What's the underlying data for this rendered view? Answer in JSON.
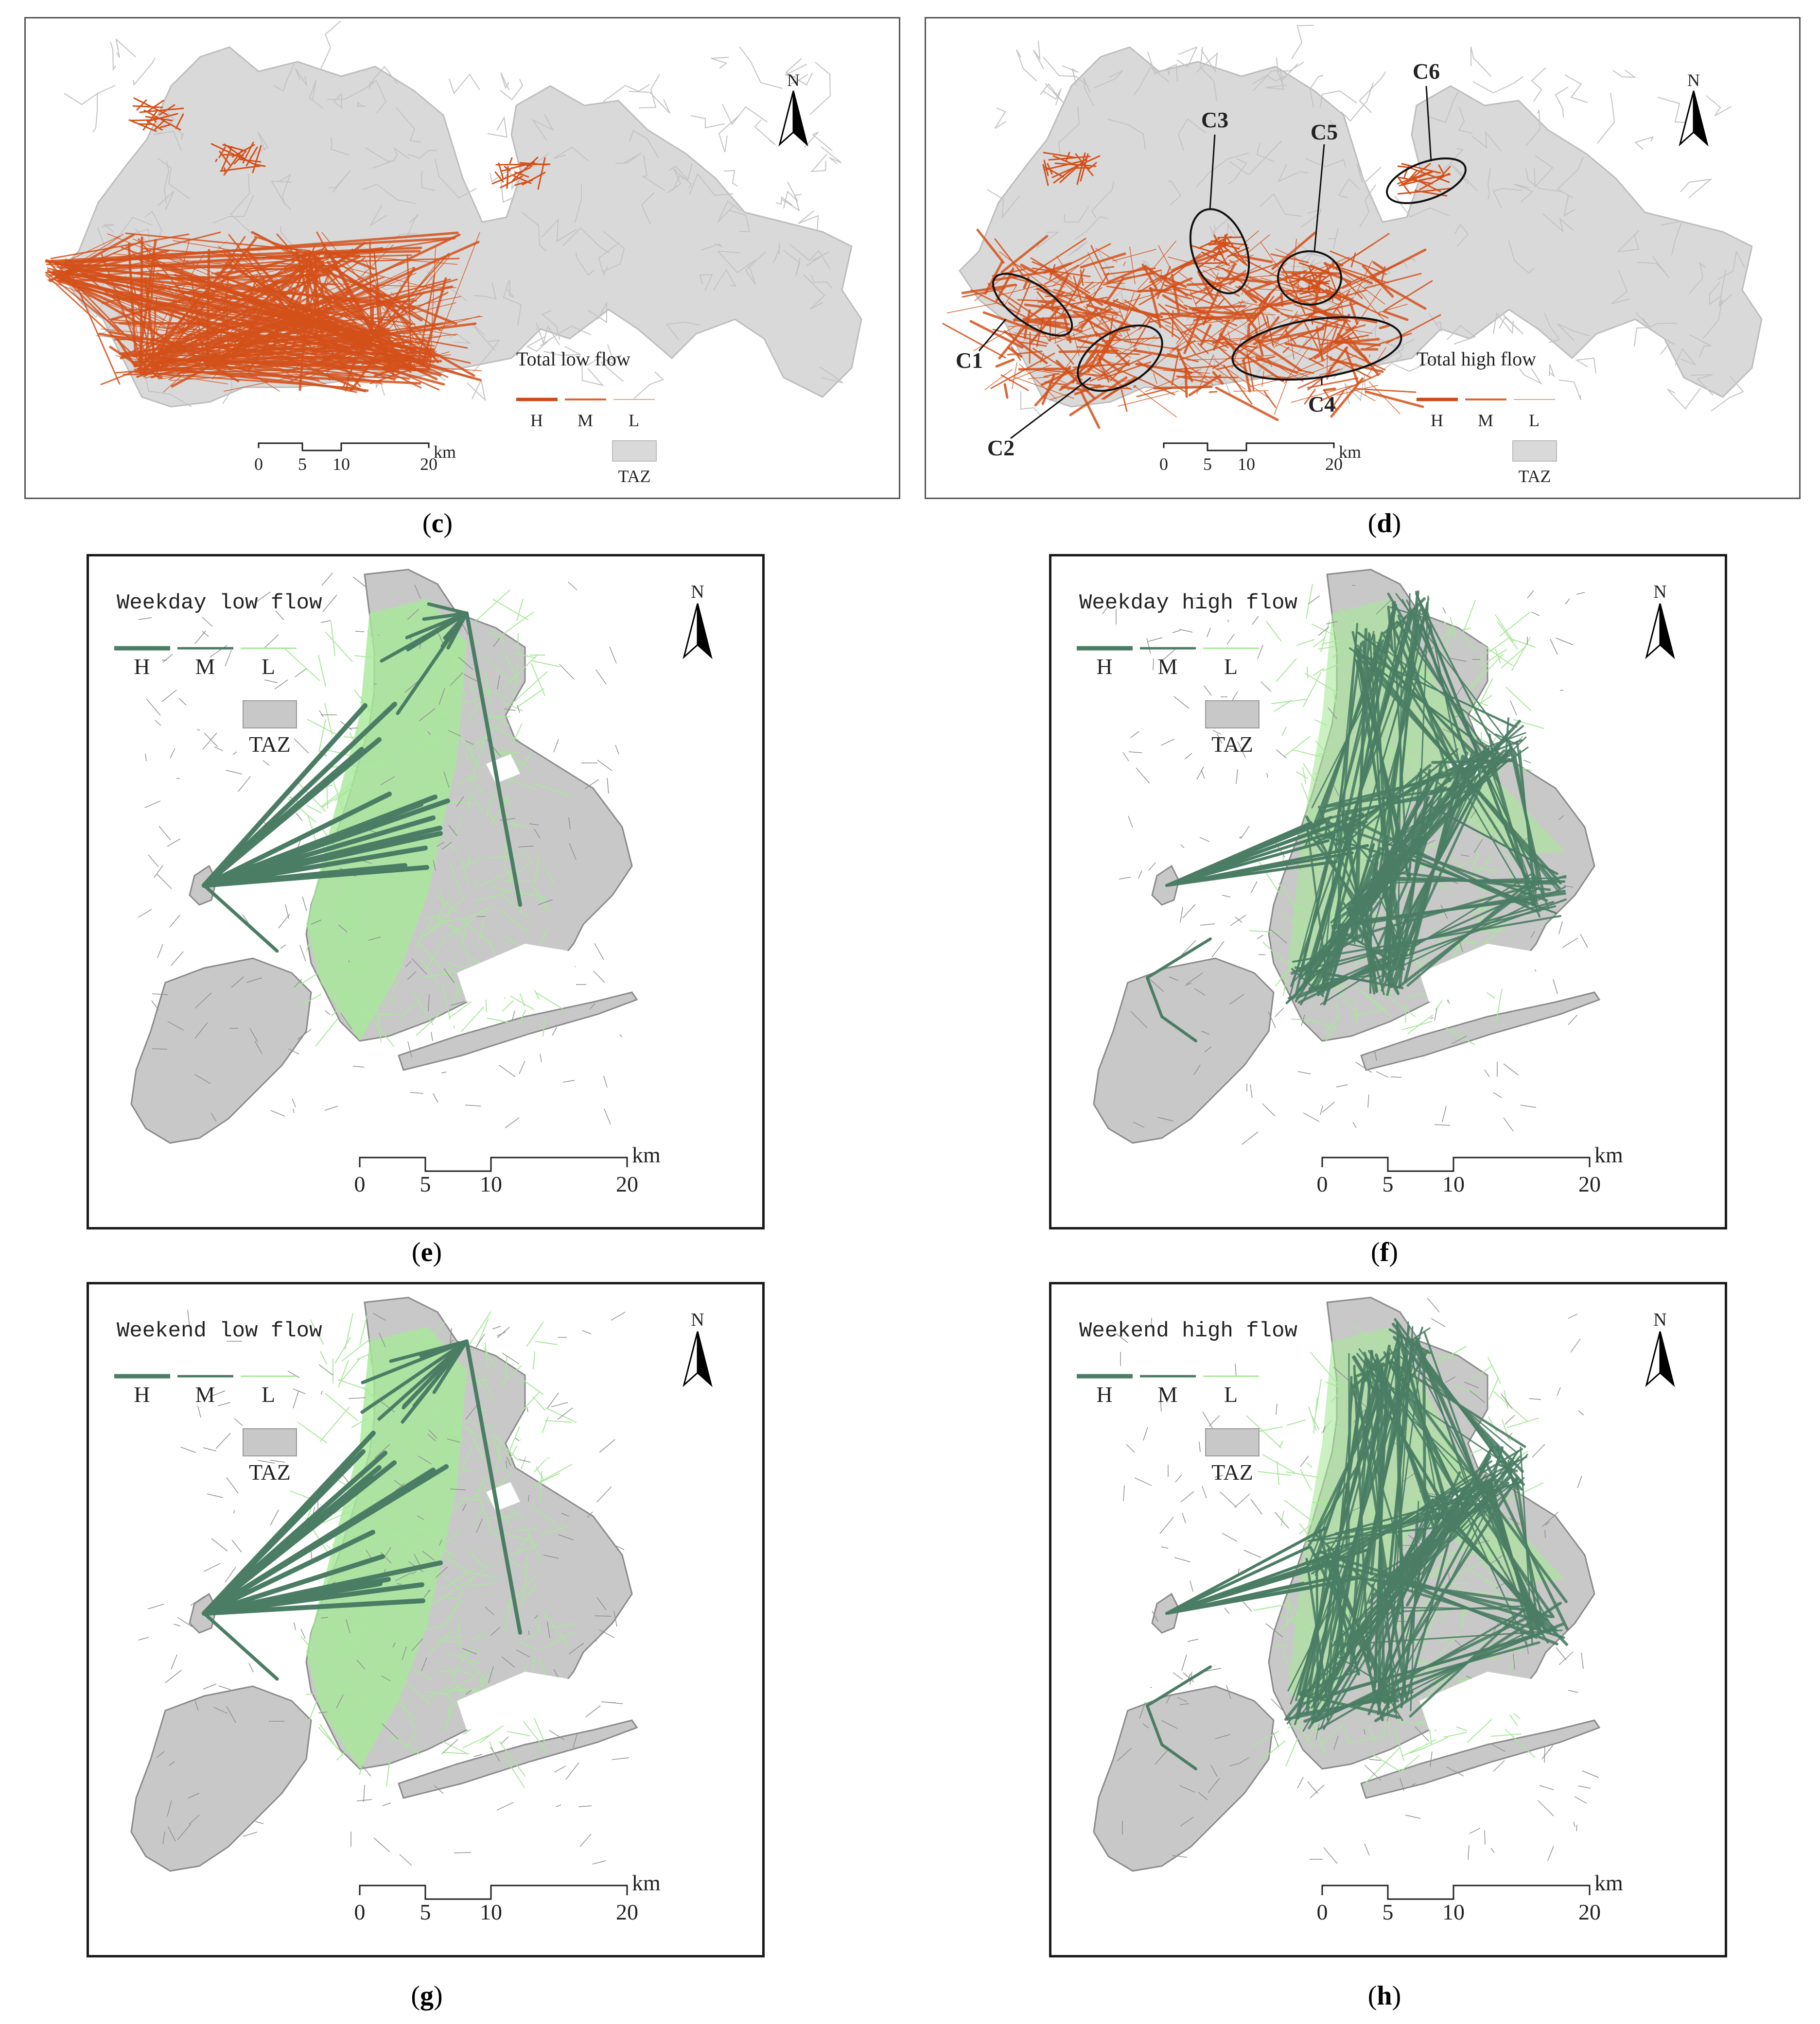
{
  "panels": [
    {
      "id": "c",
      "caption": "c",
      "legend_title": "Total low flow",
      "legend_levels": [
        "H",
        "M",
        "L"
      ],
      "taz_label": "TAZ",
      "north_label": "N",
      "scale_ticks": [
        "0",
        "5",
        "10",
        "20"
      ],
      "scale_unit": "km",
      "flow_color": "#d4501a",
      "region_color": "#d9d9d9"
    },
    {
      "id": "d",
      "caption": "d",
      "legend_title": "Total high flow",
      "legend_levels": [
        "H",
        "M",
        "L"
      ],
      "taz_label": "TAZ",
      "north_label": "N",
      "scale_ticks": [
        "0",
        "5",
        "10",
        "20"
      ],
      "scale_unit": "km",
      "cluster_labels": [
        "C1",
        "C2",
        "C3",
        "C4",
        "C5",
        "C6"
      ],
      "flow_color": "#d4501a",
      "region_color": "#d9d9d9"
    },
    {
      "id": "e",
      "caption": "e",
      "legend_title": "Weekday low flow",
      "legend_levels": [
        "H",
        "M",
        "L"
      ],
      "taz_label": "TAZ",
      "north_label": "N",
      "scale_ticks": [
        "0",
        "5",
        "10",
        "20"
      ],
      "scale_unit": "km",
      "flow_color": "#4a7d64",
      "light_color": "#a8e89a",
      "region_color": "#c8c8c8"
    },
    {
      "id": "f",
      "caption": "f",
      "legend_title": "Weekday high flow",
      "legend_levels": [
        "H",
        "M",
        "L"
      ],
      "taz_label": "TAZ",
      "north_label": "N",
      "scale_ticks": [
        "0",
        "5",
        "10",
        "20"
      ],
      "scale_unit": "km",
      "flow_color": "#4a7d64",
      "light_color": "#a8e89a",
      "region_color": "#c8c8c8"
    },
    {
      "id": "g",
      "caption": "g",
      "legend_title": "Weekend low flow",
      "legend_levels": [
        "H",
        "M",
        "L"
      ],
      "taz_label": "TAZ",
      "north_label": "N",
      "scale_ticks": [
        "0",
        "5",
        "10",
        "20"
      ],
      "scale_unit": "km",
      "flow_color": "#4a7d64",
      "light_color": "#a8e89a",
      "region_color": "#c8c8c8"
    },
    {
      "id": "h",
      "caption": "h",
      "legend_title": "Weekend high flow",
      "legend_levels": [
        "H",
        "M",
        "L"
      ],
      "taz_label": "TAZ",
      "north_label": "N",
      "scale_ticks": [
        "0",
        "5",
        "10",
        "20"
      ],
      "scale_unit": "km",
      "flow_color": "#4a7d64",
      "light_color": "#a8e89a",
      "region_color": "#c8c8c8"
    }
  ]
}
